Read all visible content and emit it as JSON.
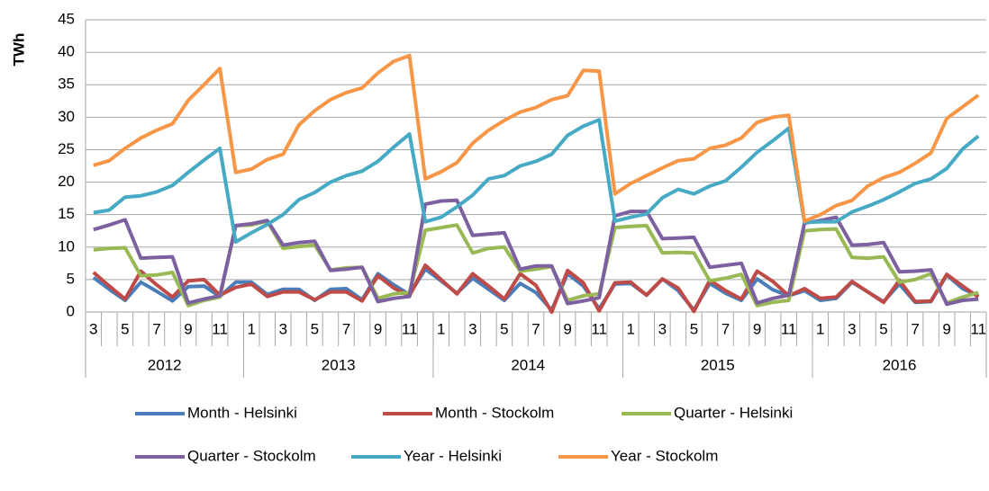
{
  "chart_data": {
    "type": "line",
    "y_label": "TWh",
    "category_groups": [
      {
        "name": "2012",
        "categories": [
          "3",
          null,
          "5",
          null,
          "7",
          null,
          "9",
          null,
          "11",
          null
        ]
      },
      {
        "name": "2013",
        "categories": [
          "1",
          null,
          "3",
          null,
          "5",
          null,
          "7",
          null,
          "9",
          null,
          "11",
          null
        ]
      },
      {
        "name": "2014",
        "categories": [
          "1",
          null,
          "3",
          null,
          "5",
          null,
          "7",
          null,
          "9",
          null,
          "11",
          null
        ]
      },
      {
        "name": "2015",
        "categories": [
          "1",
          null,
          "3",
          null,
          "5",
          null,
          "7",
          null,
          "9",
          null,
          "11",
          null
        ]
      },
      {
        "name": "2016",
        "categories": [
          "1",
          null,
          "3",
          null,
          "5",
          null,
          "7",
          null,
          "9",
          null,
          "11"
        ]
      }
    ],
    "series": [
      {
        "name": "Month - Helsinki",
        "color": "#4a7ebb",
        "values": [
          5.3,
          3.5,
          1.8,
          4.6,
          3.2,
          1.7,
          3.9,
          4.0,
          2.4,
          4.6,
          4.6,
          2.7,
          3.5,
          3.5,
          1.8,
          3.5,
          3.6,
          1.9,
          5.9,
          4.2,
          2.7,
          6.6,
          4.8,
          2.9,
          5.2,
          3.5,
          1.8,
          4.4,
          3.0,
          0.3,
          5.9,
          4.0,
          0.5,
          4.3,
          4.4,
          2.6,
          5.1,
          3.3,
          0.3,
          4.4,
          2.9,
          1.8,
          5.1,
          3.4,
          2.5,
          3.3,
          1.8,
          2.1,
          4.6,
          3.1,
          1.6,
          4.3,
          1.5,
          1.6,
          5.7,
          3.6,
          2.5
        ]
      },
      {
        "name": "Month - Stockolm",
        "color": "#be4b48",
        "values": [
          6.1,
          4.0,
          2.0,
          6.3,
          4.2,
          2.3,
          4.8,
          5.0,
          2.6,
          3.8,
          4.3,
          2.4,
          3.1,
          3.1,
          1.9,
          3.1,
          3.1,
          1.7,
          5.6,
          3.7,
          2.5,
          7.2,
          5.0,
          2.8,
          5.9,
          4.0,
          2.0,
          5.9,
          4.1,
          0.0,
          6.4,
          4.5,
          0.2,
          4.5,
          4.6,
          2.6,
          5.1,
          3.7,
          0.1,
          4.9,
          3.3,
          2.0,
          6.3,
          4.7,
          2.5,
          3.6,
          2.1,
          2.3,
          4.7,
          3.1,
          1.5,
          4.9,
          1.6,
          1.7,
          5.8,
          4.0,
          2.3
        ]
      },
      {
        "name": "Quarter - Helsinki",
        "color": "#98b954",
        "values": [
          9.6,
          9.8,
          9.9,
          5.6,
          5.7,
          6.1,
          1.0,
          1.8,
          2.3,
          13.3,
          13.4,
          14.0,
          9.8,
          10.1,
          10.3,
          6.5,
          6.8,
          6.9,
          2.1,
          2.8,
          3.0,
          12.6,
          13.0,
          13.4,
          9.1,
          9.8,
          10.0,
          6.3,
          6.6,
          7.0,
          1.8,
          2.5,
          2.8,
          13.0,
          13.2,
          13.3,
          9.1,
          9.2,
          9.1,
          4.8,
          5.2,
          5.8,
          1.0,
          1.5,
          1.8,
          12.5,
          12.7,
          12.8,
          8.4,
          8.3,
          8.5,
          4.6,
          5.0,
          5.9,
          1.4,
          2.3,
          3.0
        ]
      },
      {
        "name": "Quarter - Stockolm",
        "color": "#7d60a0",
        "values": [
          12.7,
          13.4,
          14.2,
          8.3,
          8.4,
          8.5,
          1.4,
          2.0,
          2.5,
          13.3,
          13.6,
          14.1,
          10.3,
          10.7,
          10.9,
          6.4,
          6.6,
          6.9,
          1.6,
          2.1,
          2.4,
          16.6,
          17.1,
          17.2,
          11.8,
          12.0,
          12.2,
          6.6,
          7.1,
          7.1,
          1.3,
          1.7,
          2.2,
          14.8,
          15.5,
          15.5,
          11.3,
          11.4,
          11.5,
          6.9,
          7.2,
          7.5,
          1.4,
          2.1,
          2.6,
          13.7,
          14.1,
          14.6,
          10.3,
          10.4,
          10.7,
          6.2,
          6.3,
          6.5,
          1.2,
          1.8,
          2.0
        ]
      },
      {
        "name": "Year - Helsinki",
        "color": "#46aac5",
        "values": [
          15.3,
          15.7,
          17.7,
          17.9,
          18.5,
          19.5,
          21.5,
          23.4,
          25.2,
          10.8,
          12.2,
          13.5,
          15.0,
          17.3,
          18.4,
          20.0,
          21.0,
          21.7,
          23.2,
          25.4,
          27.4,
          13.9,
          14.6,
          16.2,
          18.0,
          20.5,
          21.0,
          22.5,
          23.2,
          24.3,
          27.2,
          28.6,
          29.6,
          14.0,
          14.6,
          15.1,
          17.6,
          18.9,
          18.2,
          19.4,
          20.2,
          22.3,
          24.6,
          26.4,
          28.3,
          13.8,
          13.9,
          13.9,
          15.4,
          16.3,
          17.3,
          18.5,
          19.8,
          20.5,
          22.1,
          25.1,
          27.1
        ]
      },
      {
        "name": "Year - Stockolm",
        "color": "#f79646",
        "values": [
          22.6,
          23.3,
          25.2,
          26.8,
          28.0,
          29.0,
          32.6,
          35.0,
          37.5,
          21.5,
          22.0,
          23.5,
          24.3,
          28.8,
          31.0,
          32.7,
          33.8,
          34.5,
          36.8,
          38.6,
          39.5,
          20.5,
          21.6,
          23.0,
          26.0,
          28.0,
          29.5,
          30.8,
          31.5,
          32.7,
          33.3,
          37.2,
          37.1,
          18.2,
          19.8,
          21.0,
          22.2,
          23.3,
          23.6,
          25.2,
          25.7,
          26.8,
          29.2,
          30.0,
          30.3,
          14.0,
          15.0,
          16.4,
          17.2,
          19.4,
          20.7,
          21.5,
          22.9,
          24.5,
          29.8,
          31.6,
          33.4
        ]
      }
    ],
    "ylim": [
      0,
      45
    ],
    "yticks": [
      0,
      5,
      10,
      15,
      20,
      25,
      30,
      35,
      40,
      45
    ],
    "grid": true
  }
}
